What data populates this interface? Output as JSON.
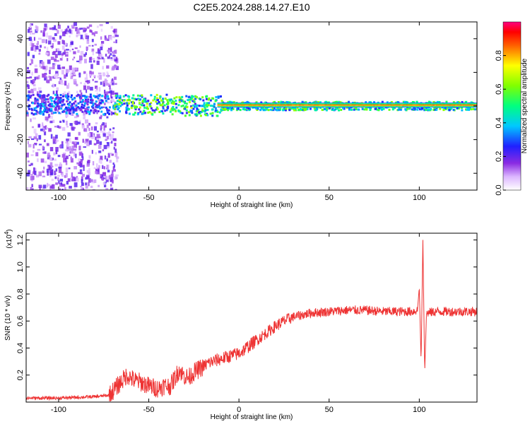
{
  "title": "C2E5.2024.288.14.27.E10",
  "chart_data": [
    {
      "type": "heatmap",
      "xlabel": "Height of straight line (km)",
      "ylabel": "Frequency (Hz)",
      "xlim": [
        -118,
        132
      ],
      "ylim": [
        -50,
        50
      ],
      "x_ticks": [
        "-100",
        "-50",
        "0",
        "50",
        "100"
      ],
      "y_ticks": [
        "-40",
        "-20",
        "0",
        "20",
        "40"
      ],
      "colorbar": {
        "label": "Normalized spectral amplitude",
        "range": [
          0,
          1
        ],
        "ticks": [
          "0.0",
          "0.2",
          "0.4",
          "0.6",
          "0.8"
        ]
      }
    },
    {
      "type": "line",
      "xlabel": "Height of straight line (km)",
      "ylabel": "SNR (10 * v/v)",
      "multiplier": "(x10",
      "multiplier_exp": "4",
      "multiplier_close": ")",
      "xlim": [
        -118,
        132
      ],
      "ylim": [
        0,
        1.25
      ],
      "x_ticks": [
        "-100",
        "-50",
        "0",
        "50",
        "100"
      ],
      "y_ticks": [
        "0.2",
        "0.4",
        "0.6",
        "0.8",
        "1.0",
        "1.2"
      ],
      "color": "#ee3333",
      "series": [
        {
          "x": [
            -118,
            -100,
            -80,
            -72,
            -66,
            -62,
            -58,
            -55,
            -50,
            -45,
            -42,
            -38,
            -33,
            -31,
            -28,
            -25,
            -20,
            -17,
            -10,
            -5,
            0,
            5,
            10,
            15,
            20,
            25,
            30,
            40,
            50,
            60,
            70,
            80,
            90,
            96,
            99,
            100,
            101,
            102,
            103,
            104,
            110,
            120,
            132
          ],
          "y": [
            0.03,
            0.03,
            0.04,
            0.05,
            0.14,
            0.2,
            0.16,
            0.15,
            0.12,
            0.1,
            0.12,
            0.12,
            0.24,
            0.2,
            0.18,
            0.22,
            0.26,
            0.29,
            0.32,
            0.34,
            0.36,
            0.41,
            0.46,
            0.51,
            0.56,
            0.6,
            0.63,
            0.66,
            0.67,
            0.68,
            0.68,
            0.67,
            0.67,
            0.67,
            0.68,
            0.85,
            0.3,
            1.2,
            0.22,
            0.66,
            0.67,
            0.67,
            0.67
          ]
        }
      ]
    }
  ]
}
